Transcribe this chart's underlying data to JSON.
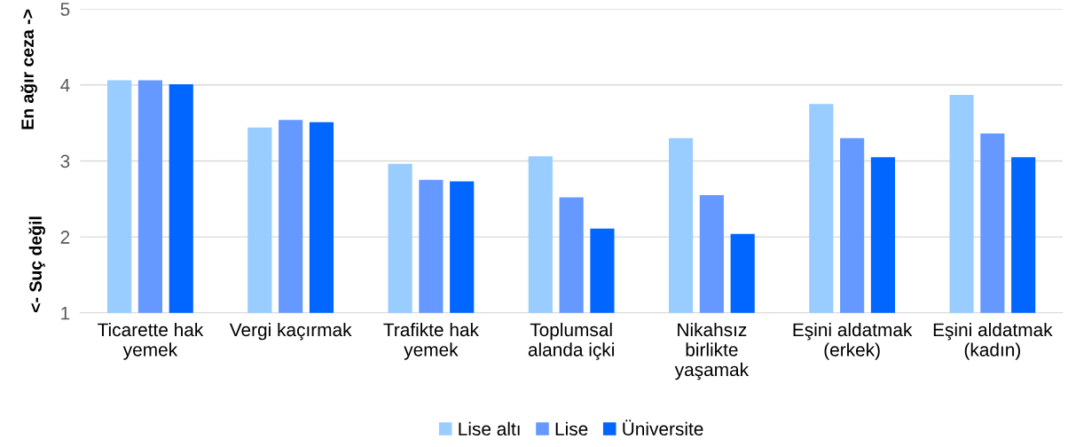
{
  "chart_data": {
    "type": "bar",
    "ylabel": "<- Suç değil",
    "annotations": [
      "En ağır ceza ->"
    ],
    "categories": [
      "Ticarette hak\nyemek",
      "Vergi kaçırmak",
      "Trafikte hak\nyemek",
      "Toplumsal\nalanda içki",
      "Nikahsız\nbirlikte\nyaşamak",
      "Eşini aldatmak\n(erkek)",
      "Eşini aldatmak\n(kadın)"
    ],
    "series": [
      {
        "name": "Lise altı",
        "color": "#99ccff",
        "values": [
          4.06,
          3.44,
          2.96,
          3.06,
          3.3,
          3.75,
          3.87
        ]
      },
      {
        "name": "Lise",
        "color": "#6699ff",
        "values": [
          4.06,
          3.54,
          2.75,
          2.52,
          2.55,
          3.3,
          3.36
        ]
      },
      {
        "name": "Üniversite",
        "color": "#0066ff",
        "values": [
          4.01,
          3.51,
          2.73,
          2.11,
          2.04,
          3.05,
          3.05
        ]
      }
    ],
    "ylim": [
      1,
      5
    ],
    "yticks": [
      1,
      2,
      3,
      4,
      5
    ],
    "grid": "y",
    "legend": "bottom"
  }
}
